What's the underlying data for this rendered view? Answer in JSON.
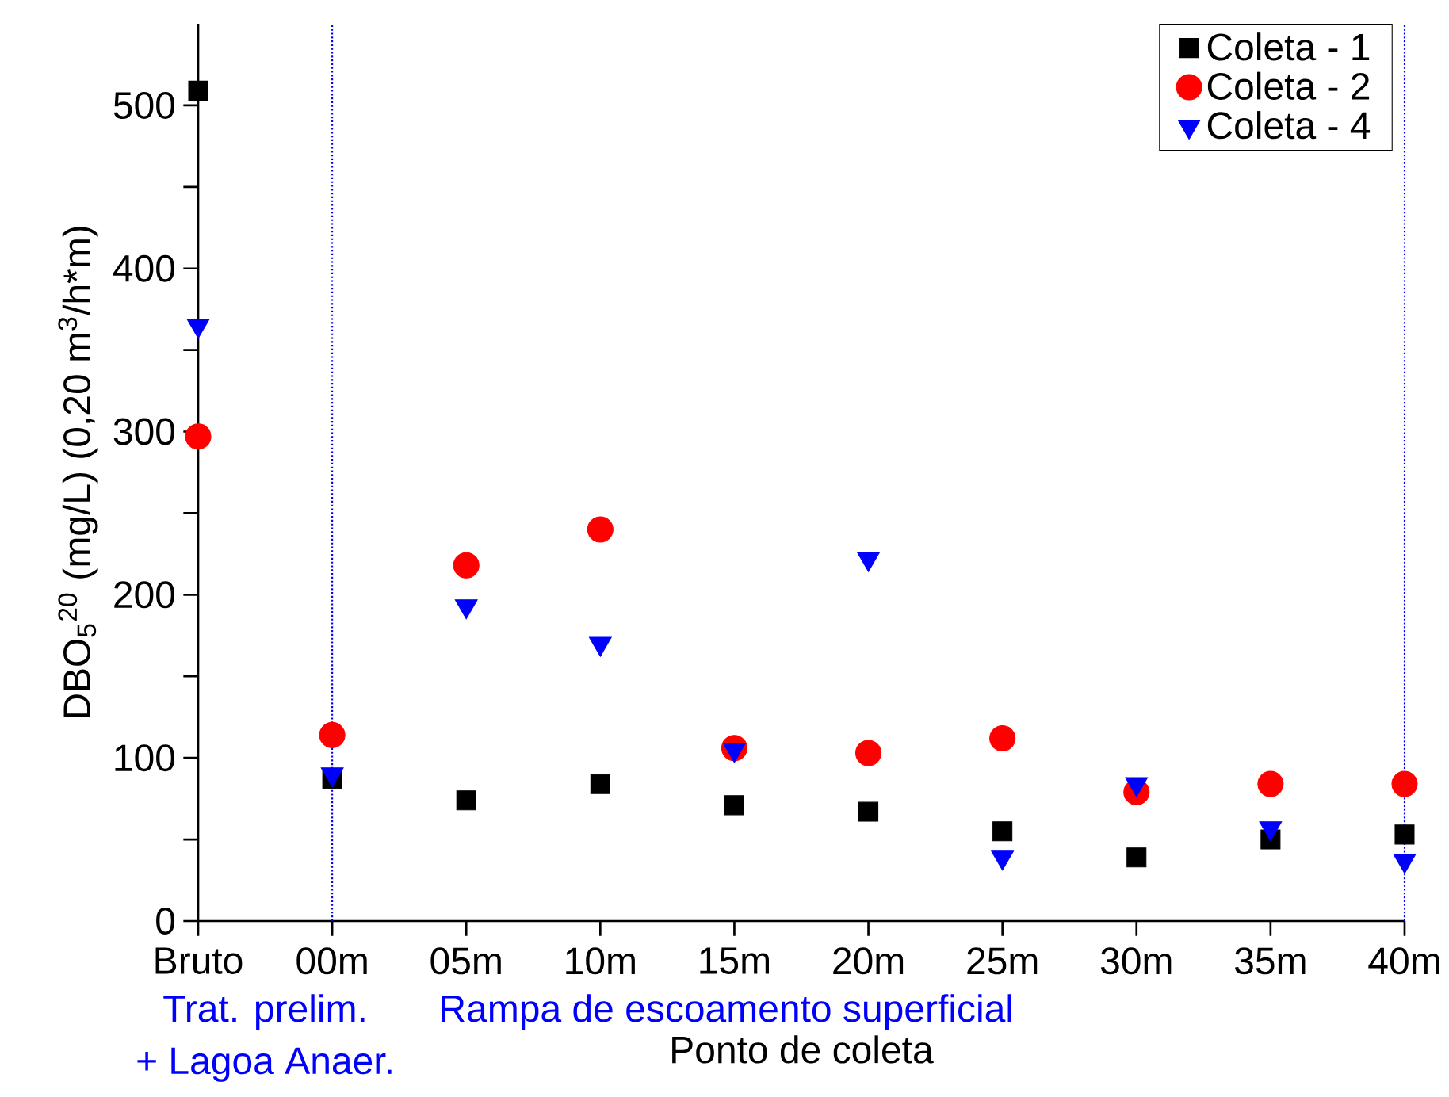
{
  "chart_data": {
    "type": "scatter",
    "xlabel": "Ponto de coleta",
    "ylabel": "DBO$_{5}$$^{20}$  (mg/L)    (0,20 m$^{3}$/h*m)",
    "categories": [
      "Bruto",
      "00m",
      "05m",
      "10m",
      "15m",
      "20m",
      "25m",
      "30m",
      "35m",
      "40m"
    ],
    "series": [
      {
        "name": "Coleta - 1",
        "color": "#000000",
        "marker": "square",
        "values": [
          509,
          87,
          74,
          84,
          71,
          67,
          55,
          39,
          50,
          53
        ]
      },
      {
        "name": "Coleta - 2",
        "color": "#ff0000",
        "marker": "circle",
        "values": [
          297,
          114,
          218,
          240,
          106,
          103,
          112,
          79,
          84,
          84
        ]
      },
      {
        "name": "Coleta - 4",
        "color": "#0000ff",
        "marker": "triangle",
        "values": [
          365,
          90,
          193,
          170,
          105,
          222,
          39,
          84,
          57,
          37
        ]
      }
    ],
    "ylim": [
      0,
      550
    ],
    "yticks": [
      0,
      {
        "value": 50,
        "label": null
      },
      100,
      {
        "value": 150,
        "label": null
      },
      200,
      {
        "value": 250,
        "label": null
      },
      300,
      {
        "value": 350,
        "label": null
      },
      400,
      {
        "value": 450,
        "label": null
      },
      500
    ],
    "ref_lines": [
      {
        "axis": "x",
        "value": "00m",
        "color": "#0000ff",
        "line_style": "dotted"
      },
      {
        "axis": "x",
        "value": "40m",
        "color": "#0000ff",
        "line_style": "dotted"
      }
    ],
    "annotations": [
      "Trat. prelim.",
      "+ Lagoa Anaer.",
      "Rampa de escoamento superficial"
    ],
    "legend": "top right",
    "grid": false
  }
}
